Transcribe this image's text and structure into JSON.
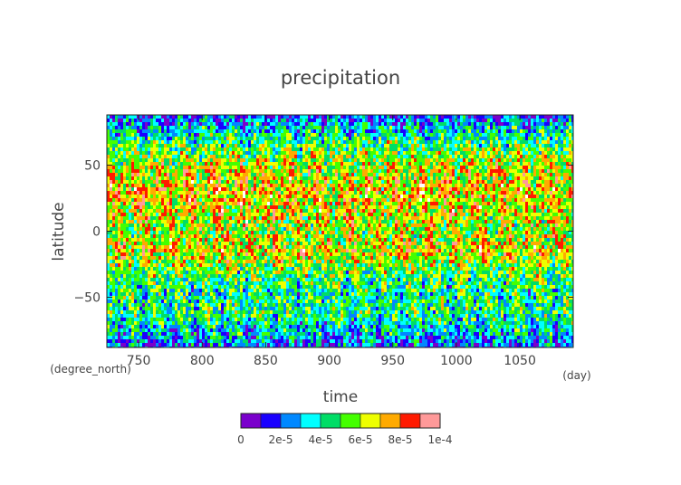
{
  "chart_data": {
    "type": "heatmap",
    "title": "precipitation",
    "xlabel": "time",
    "ylabel": "latitude",
    "x_unit": "(day)",
    "y_unit": "(degree_north)",
    "xlim": [
      725,
      1092
    ],
    "ylim": [
      -88,
      88
    ],
    "x_ticks": [
      750,
      800,
      850,
      900,
      950,
      1000,
      1050
    ],
    "y_ticks": [
      -50,
      0,
      50
    ],
    "colorbar": {
      "range": [
        0,
        0.0001
      ],
      "tick_labels": [
        "0",
        "2e-5",
        "4e-5",
        "6e-5",
        "8e-5",
        "1e-4"
      ],
      "colors": [
        "#7a00cc",
        "#1a00ff",
        "#0088ff",
        "#00ffff",
        "#00dd66",
        "#44ff00",
        "#eeff00",
        "#ffaa00",
        "#ff1a00",
        "#ff9999"
      ]
    },
    "latitude_profile": [
      {
        "lat": -88,
        "level": 0.18
      },
      {
        "lat": -75,
        "level": 0.33
      },
      {
        "lat": -60,
        "level": 0.45
      },
      {
        "lat": -45,
        "level": 0.43
      },
      {
        "lat": -30,
        "level": 0.5
      },
      {
        "lat": -15,
        "level": 0.7
      },
      {
        "lat": 0,
        "level": 0.6
      },
      {
        "lat": 15,
        "level": 0.66
      },
      {
        "lat": 30,
        "level": 0.72
      },
      {
        "lat": 45,
        "level": 0.65
      },
      {
        "lat": 60,
        "level": 0.55
      },
      {
        "lat": 75,
        "level": 0.38
      },
      {
        "lat": 88,
        "level": 0.18
      }
    ]
  }
}
